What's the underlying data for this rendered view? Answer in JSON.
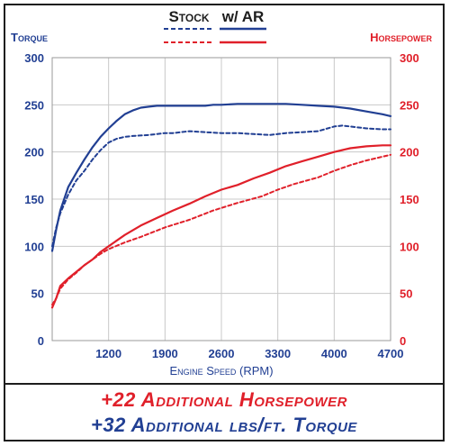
{
  "chart_data": {
    "type": "line",
    "legend": {
      "stock_label": "Stock",
      "ar_label": "w/ AR",
      "placement": "top-center"
    },
    "left_axis": {
      "title": "Torque",
      "ticks": [
        "0",
        "50",
        "100",
        "150",
        "200",
        "250",
        "300"
      ],
      "ylim": [
        0,
        300
      ]
    },
    "right_axis": {
      "title": "Horsepower",
      "ticks": [
        "0",
        "50",
        "100",
        "150",
        "200",
        "250",
        "300"
      ],
      "ylim": [
        0,
        300
      ]
    },
    "x_axis": {
      "title": "Engine Speed (RPM)",
      "ticks": [
        "1200",
        "1900",
        "2600",
        "3300",
        "4000",
        "4700"
      ],
      "xlim": [
        500,
        4700
      ]
    },
    "grid": true,
    "series": [
      {
        "name": "Torque Stock",
        "axis": "left",
        "style": "dashed",
        "color": "#213f93",
        "x": [
          500,
          550,
          600,
          700,
          800,
          900,
          1000,
          1100,
          1200,
          1300,
          1400,
          1500,
          1700,
          1900,
          2000,
          2100,
          2200,
          2400,
          2600,
          2800,
          3000,
          3200,
          3300,
          3400,
          3600,
          3800,
          4000,
          4100,
          4200,
          4400,
          4600,
          4700
        ],
        "y": [
          100,
          120,
          135,
          155,
          170,
          180,
          192,
          202,
          210,
          214,
          216,
          217,
          218,
          220,
          220,
          221,
          222,
          221,
          220,
          220,
          219,
          218,
          219,
          220,
          221,
          222,
          227,
          228,
          227,
          225,
          224,
          224
        ]
      },
      {
        "name": "Torque w/ AR",
        "axis": "left",
        "style": "solid",
        "color": "#213f93",
        "x": [
          500,
          550,
          600,
          700,
          800,
          900,
          1000,
          1100,
          1200,
          1300,
          1400,
          1500,
          1600,
          1700,
          1800,
          1900,
          2000,
          2200,
          2400,
          2500,
          2600,
          2800,
          3000,
          3200,
          3400,
          3600,
          3800,
          4000,
          4200,
          4400,
          4600,
          4700
        ],
        "y": [
          95,
          118,
          138,
          163,
          178,
          192,
          205,
          216,
          225,
          233,
          240,
          244,
          247,
          248,
          249,
          249,
          249,
          249,
          249,
          250,
          250,
          251,
          251,
          251,
          251,
          250,
          249,
          248,
          246,
          243,
          240,
          238
        ]
      },
      {
        "name": "Horsepower Stock",
        "axis": "right",
        "style": "dashed",
        "color": "#e0202a",
        "x": [
          500,
          550,
          600,
          700,
          800,
          900,
          1000,
          1100,
          1200,
          1400,
          1600,
          1900,
          2200,
          2500,
          2800,
          3100,
          3300,
          3500,
          3800,
          4000,
          4200,
          4400,
          4600,
          4700
        ],
        "y": [
          38,
          45,
          55,
          65,
          72,
          80,
          86,
          92,
          97,
          104,
          110,
          120,
          128,
          138,
          146,
          153,
          160,
          166,
          173,
          180,
          186,
          191,
          195,
          197
        ]
      },
      {
        "name": "Horsepower w/ AR",
        "axis": "right",
        "style": "solid",
        "color": "#e0202a",
        "x": [
          500,
          550,
          600,
          700,
          800,
          900,
          1000,
          1100,
          1200,
          1400,
          1600,
          1800,
          2000,
          2200,
          2400,
          2600,
          2800,
          3000,
          3200,
          3400,
          3600,
          3800,
          4000,
          4200,
          4400,
          4600,
          4700
        ],
        "y": [
          35,
          45,
          58,
          66,
          73,
          80,
          86,
          94,
          100,
          112,
          122,
          130,
          138,
          145,
          153,
          160,
          165,
          172,
          178,
          185,
          190,
          195,
          200,
          204,
          206,
          207,
          207
        ]
      }
    ]
  },
  "footer": {
    "hp_line": "+22 Additional Horsepower",
    "tq_line": "+32 Additional lbs/ft. Torque"
  },
  "colors": {
    "blue": "#213f93",
    "red": "#e0202a",
    "grid": "#c8c8c8"
  }
}
